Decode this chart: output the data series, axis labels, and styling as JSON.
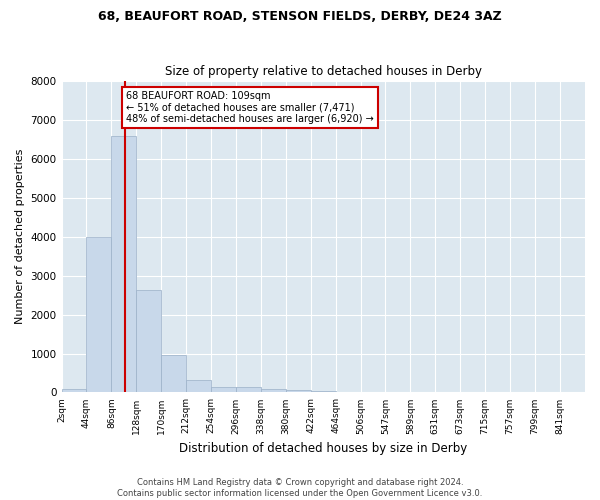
{
  "title": "68, BEAUFORT ROAD, STENSON FIELDS, DERBY, DE24 3AZ",
  "subtitle": "Size of property relative to detached houses in Derby",
  "xlabel": "Distribution of detached houses by size in Derby",
  "ylabel": "Number of detached properties",
  "bar_color": "#c8d8ea",
  "bar_edge_color": "#9ab0c8",
  "background_color": "#dde8f0",
  "grid_color": "#ffffff",
  "annotation_box_color": "#cc0000",
  "property_line_color": "#cc0000",
  "property_sqm": 109,
  "annotation_title": "68 BEAUFORT ROAD: 109sqm",
  "annotation_line1": "← 51% of detached houses are smaller (7,471)",
  "annotation_line2": "48% of semi-detached houses are larger (6,920) →",
  "footer1": "Contains HM Land Registry data © Crown copyright and database right 2024.",
  "footer2": "Contains public sector information licensed under the Open Government Licence v3.0.",
  "bin_edges": [
    2,
    44,
    86,
    128,
    170,
    212,
    254,
    296,
    338,
    380,
    422,
    464,
    506,
    547,
    589,
    631,
    673,
    715,
    757,
    799,
    841
  ],
  "bin_labels": [
    "2sqm",
    "44sqm",
    "86sqm",
    "128sqm",
    "170sqm",
    "212sqm",
    "254sqm",
    "296sqm",
    "338sqm",
    "380sqm",
    "422sqm",
    "464sqm",
    "506sqm",
    "547sqm",
    "589sqm",
    "631sqm",
    "673sqm",
    "715sqm",
    "757sqm",
    "799sqm",
    "841sqm"
  ],
  "bar_values": [
    80,
    4000,
    6600,
    2620,
    960,
    320,
    130,
    130,
    80,
    60,
    30,
    0,
    0,
    0,
    0,
    0,
    0,
    0,
    0,
    0
  ],
  "ylim": [
    0,
    8000
  ],
  "yticks": [
    0,
    1000,
    2000,
    3000,
    4000,
    5000,
    6000,
    7000,
    8000
  ]
}
